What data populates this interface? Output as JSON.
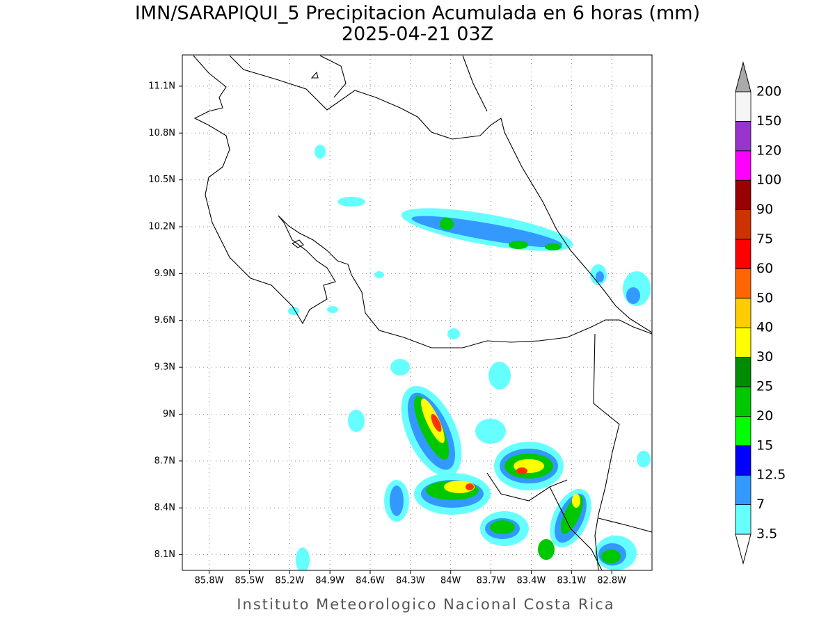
{
  "title": "IMN/SARAPIQUI_5 Precipitacion Acumulada en 6 horas (mm)",
  "subtitle": "2025-04-21 03Z",
  "footer": "Instituto Meteorologico Nacional Costa Rica",
  "map": {
    "xlim": [
      -86.0,
      -82.5
    ],
    "ylim": [
      8.0,
      11.3
    ],
    "xticks": [
      {
        "value": -85.8,
        "label": "85.8W"
      },
      {
        "value": -85.5,
        "label": "85.5W"
      },
      {
        "value": -85.2,
        "label": "85.2W"
      },
      {
        "value": -84.9,
        "label": "84.9W"
      },
      {
        "value": -84.6,
        "label": "84.6W"
      },
      {
        "value": -84.3,
        "label": "84.3W"
      },
      {
        "value": -84.0,
        "label": "84W"
      },
      {
        "value": -83.7,
        "label": "83.7W"
      },
      {
        "value": -83.4,
        "label": "83.4W"
      },
      {
        "value": -83.1,
        "label": "83.1W"
      },
      {
        "value": -82.8,
        "label": "82.8W"
      }
    ],
    "yticks": [
      {
        "value": 8.1,
        "label": "8.1N"
      },
      {
        "value": 8.4,
        "label": "8.4N"
      },
      {
        "value": 8.7,
        "label": "8.7N"
      },
      {
        "value": 9.0,
        "label": "9N"
      },
      {
        "value": 9.3,
        "label": "9.3N"
      },
      {
        "value": 9.6,
        "label": "9.6N"
      },
      {
        "value": 9.9,
        "label": "9.9N"
      },
      {
        "value": 10.2,
        "label": "10.2N"
      },
      {
        "value": 10.5,
        "label": "10.5N"
      },
      {
        "value": 10.8,
        "label": "10.8N"
      },
      {
        "value": 11.1,
        "label": "11.1N"
      }
    ],
    "grid": true
  },
  "colorbar": {
    "levels": [
      3.5,
      7,
      12.5,
      15,
      20,
      25,
      30,
      40,
      50,
      60,
      75,
      90,
      100,
      120,
      150,
      200
    ],
    "colors": [
      "#66ffff",
      "#3399ff",
      "#0000ff",
      "#00ff00",
      "#00c800",
      "#008c00",
      "#ffff00",
      "#ffcc00",
      "#ff6600",
      "#ff0000",
      "#cc3300",
      "#990000",
      "#ff00ff",
      "#9933cc",
      "#f5f5f5"
    ],
    "under_color": "#ffffff",
    "over_color": "#aaaaaa"
  }
}
